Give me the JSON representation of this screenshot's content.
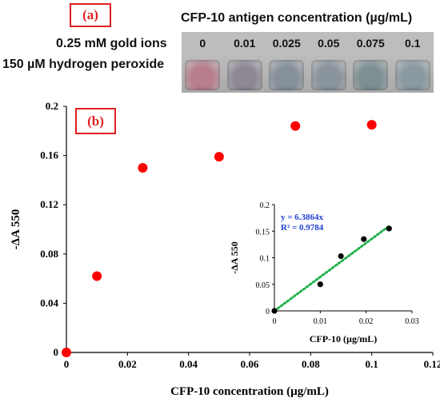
{
  "panel_a": {
    "label": "(a)",
    "concentration_header": "CFP-10 antigen concentration (µg/mL)",
    "concentrations": [
      "0",
      "0.01",
      "0.025",
      "0.05",
      "0.075",
      "0.1"
    ],
    "reagent_line_1": "0.25 mM gold ions",
    "reagent_line_2": "150 µM hydrogen peroxide",
    "well_colors": [
      "#b8808c",
      "#8e8894",
      "#86909a",
      "#8a949c",
      "#7d8f92",
      "#8a9aa0"
    ]
  },
  "chart_data": [
    {
      "type": "scatter",
      "label": "(b)",
      "xlabel": "CFP-10 concentration (µg/mL)",
      "ylabel": "-ΔA 550",
      "xlim": [
        0,
        0.12
      ],
      "ylim": [
        0,
        0.2
      ],
      "x_ticks": [
        "0",
        "0.02",
        "0.04",
        "0.06",
        "0.08",
        "0.1",
        "0.12"
      ],
      "y_ticks": [
        "0",
        "0.04",
        "0.08",
        "0.12",
        "0.16",
        "0.2"
      ],
      "x": [
        0,
        0.01,
        0.025,
        0.05,
        0.075,
        0.1
      ],
      "y": [
        0,
        0.062,
        0.15,
        0.159,
        0.184,
        0.185
      ],
      "marker_color": "#ff0000"
    },
    {
      "type": "scatter",
      "inset": true,
      "xlabel": "CFP-10 (µg/mL)",
      "ylabel": "-ΔA  550",
      "xlim": [
        0,
        0.03
      ],
      "ylim": [
        0,
        0.2
      ],
      "x_ticks": [
        "0",
        "0.01",
        "0.02",
        "0.03"
      ],
      "y_ticks": [
        "0",
        "0.05",
        "0.1",
        "0.15",
        "0.2"
      ],
      "x": [
        0,
        0.01,
        0.0145,
        0.0195,
        0.025
      ],
      "y": [
        0,
        0.05,
        0.103,
        0.135,
        0.155
      ],
      "marker_color": "#000000",
      "trendline": {
        "slope": 6.3864,
        "color": "#22b14c",
        "style": "dotted"
      },
      "annotations": [
        "y = 6.3864x",
        "R² = 0.9784"
      ],
      "annotation_color": "#1f3fd0"
    }
  ]
}
